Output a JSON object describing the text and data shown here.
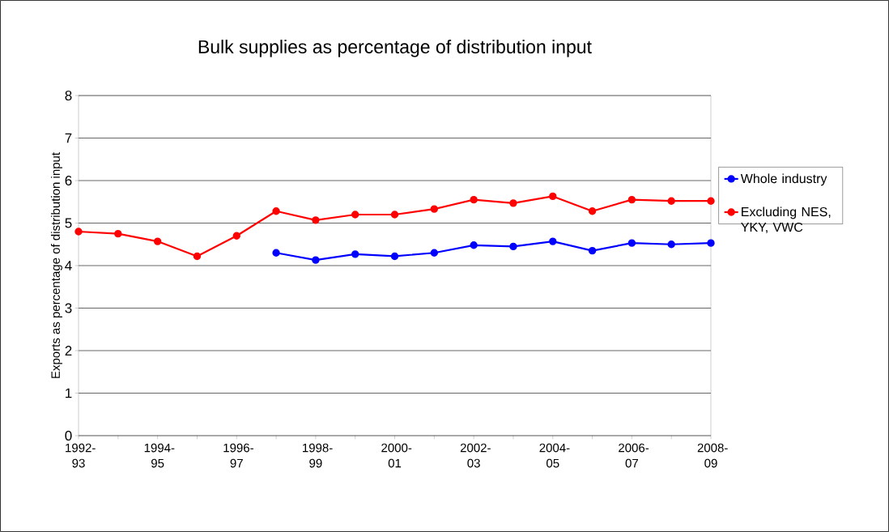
{
  "chart_data": {
    "type": "line",
    "title": "Bulk supplies as percentage of distribution input",
    "ylabel": "Exports as percentage of distribution input",
    "categories": [
      "1992-93",
      null,
      "1994-95",
      null,
      "1996-97",
      null,
      "1998-99",
      null,
      "2000-01",
      null,
      "2002-03",
      null,
      "2004-05",
      null,
      "2006-07",
      null,
      "2008-09"
    ],
    "series": [
      {
        "name": "Whole industry",
        "color": "#0000ff",
        "values": [
          null,
          null,
          null,
          null,
          null,
          4.3,
          4.13,
          4.27,
          4.22,
          4.3,
          4.48,
          4.45,
          4.57,
          4.35,
          4.53,
          4.5,
          4.53
        ]
      },
      {
        "name": "Excluding NES, YKY, VWC",
        "color": "#ff0000",
        "values": [
          4.8,
          4.75,
          4.57,
          4.22,
          4.7,
          5.28,
          5.07,
          5.2,
          5.2,
          5.33,
          5.55,
          5.47,
          5.63,
          5.28,
          5.55,
          5.52,
          5.52
        ]
      }
    ],
    "ylim": [
      0,
      8
    ],
    "yticks": [
      0,
      1,
      2,
      3,
      4,
      5,
      6,
      7,
      8
    ],
    "grid": "y",
    "legend": "right",
    "marker": "circle",
    "line_style": "solid"
  }
}
